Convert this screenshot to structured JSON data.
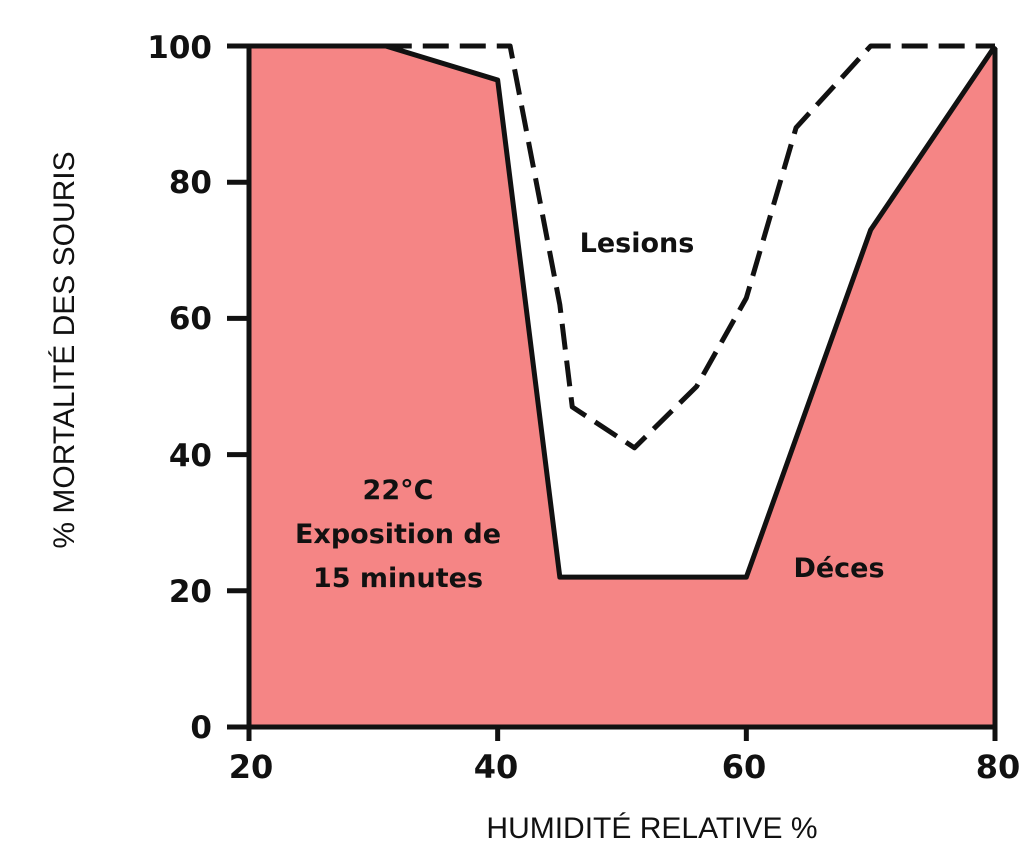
{
  "chart_data": {
    "type": "area",
    "xlabel": "HUMIDITÉ RELATIVE %",
    "ylabel": "% MORTALITÉ DES SOURIS",
    "xlim": [
      20,
      80
    ],
    "ylim": [
      0,
      100
    ],
    "x_ticks": [
      "20",
      "40",
      "60",
      "80"
    ],
    "y_ticks": [
      "0",
      "20",
      "40",
      "60",
      "80",
      "100"
    ],
    "grid": false,
    "series": [
      {
        "name": "Déces",
        "style": "solid-line-filled",
        "color": "#f58585",
        "points": [
          [
            20,
            100
          ],
          [
            31,
            100
          ],
          [
            40,
            95
          ],
          [
            45,
            22
          ],
          [
            60,
            22
          ],
          [
            70,
            73
          ],
          [
            80,
            100
          ]
        ]
      },
      {
        "name": "Lesions",
        "style": "dashed-line",
        "color": "#111111",
        "points": [
          [
            31,
            100
          ],
          [
            41,
            100
          ],
          [
            45,
            62
          ],
          [
            46,
            47
          ],
          [
            51,
            41
          ],
          [
            56,
            50
          ],
          [
            60,
            63
          ],
          [
            64,
            88
          ],
          [
            70,
            100
          ],
          [
            80,
            100
          ]
        ]
      }
    ],
    "annotations": {
      "lesions": "Lesions",
      "deces": "Déces",
      "condition_temp": "22°C",
      "condition_line1": "Exposition de",
      "condition_line2": "15 minutes"
    }
  }
}
